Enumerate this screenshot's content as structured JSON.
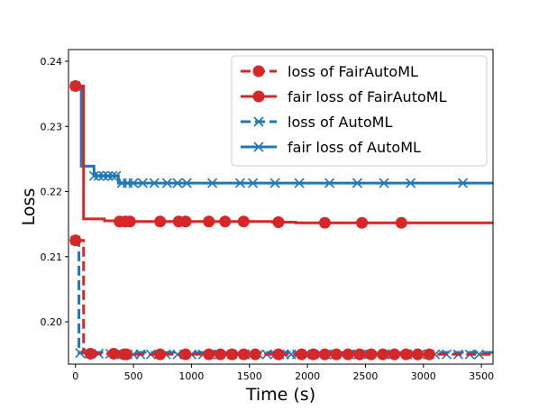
{
  "chart_data": {
    "type": "line",
    "title": "",
    "xlabel": "Time (s)",
    "ylabel": "Loss",
    "xlim": [
      -60,
      3600
    ],
    "ylim": [
      0.1935,
      0.2418
    ],
    "xticks": [
      0,
      500,
      1000,
      1500,
      2000,
      2500,
      3000,
      3500
    ],
    "yticks": [
      0.2,
      0.21,
      0.22,
      0.23,
      0.24
    ],
    "xtick_labels": [
      "0",
      "500",
      "1000",
      "1500",
      "2000",
      "2500",
      "3000",
      "3500"
    ],
    "ytick_labels": [
      "0.20",
      "0.21",
      "0.22",
      "0.23",
      "0.24"
    ],
    "grid": false,
    "legend_position": "top-right",
    "series": [
      {
        "name": "loss of FairAutoML",
        "color": "#d62728",
        "line_style": "dashed",
        "marker": "circle",
        "markers_filled": true,
        "x": [
          0,
          70,
          130,
          330,
          420,
          3600
        ],
        "y": [
          0.2125,
          0.1952,
          0.1951,
          0.1951,
          0.195,
          0.195
        ],
        "marker_x": [
          0,
          130,
          330,
          420,
          440,
          730,
          950,
          1150,
          1250,
          1350,
          1450,
          1550,
          1750,
          1950,
          2050,
          2150,
          2250,
          2350,
          2450,
          2550,
          2650,
          2750,
          2850,
          2950,
          3050
        ],
        "marker_y": [
          0.2125,
          0.1951,
          0.1951,
          0.195,
          0.195,
          0.195,
          0.195,
          0.195,
          0.195,
          0.195,
          0.195,
          0.195,
          0.195,
          0.195,
          0.195,
          0.195,
          0.195,
          0.195,
          0.195,
          0.195,
          0.195,
          0.195,
          0.195,
          0.195,
          0.195
        ]
      },
      {
        "name": "fair loss of FairAutoML",
        "color": "#d62728",
        "line_style": "solid",
        "marker": "circle",
        "markers_filled": true,
        "x": [
          0,
          30,
          70,
          250,
          380,
          1000,
          1700,
          1900,
          2150,
          2500,
          3600
        ],
        "y": [
          0.2362,
          0.2362,
          0.2158,
          0.2155,
          0.2154,
          0.2154,
          0.2153,
          0.2152,
          0.2152,
          0.2152,
          0.2152
        ],
        "marker_x": [
          0,
          380,
          430,
          470,
          730,
          890,
          950,
          1150,
          1290,
          1450,
          1750,
          2150,
          2470,
          2810
        ],
        "marker_y": [
          0.2362,
          0.2154,
          0.2154,
          0.2154,
          0.2154,
          0.2154,
          0.2154,
          0.2154,
          0.2154,
          0.2154,
          0.2153,
          0.2152,
          0.2152,
          0.2152
        ]
      },
      {
        "name": "loss of AutoML",
        "color": "#1f77b4",
        "line_style": "dashed",
        "marker": "x",
        "markers_filled": false,
        "x": [
          0,
          10,
          30,
          3600
        ],
        "y": [
          0.2125,
          0.2125,
          0.1953,
          0.195
        ],
        "marker_x": [
          0,
          40,
          120,
          200,
          300,
          350,
          400,
          450,
          500,
          560,
          650,
          720,
          780,
          880,
          940,
          1000,
          1100,
          1160,
          1200,
          1240,
          1300,
          1350,
          1400,
          1460,
          1520,
          1580,
          1650,
          1720,
          1760,
          1800,
          1860,
          1910,
          1980,
          2050,
          2120,
          2160,
          2240,
          2290,
          2360,
          2440,
          2480,
          2530,
          2600,
          2670,
          2730,
          2800,
          2860,
          2920,
          2970,
          3050,
          3100,
          3200,
          3300,
          3400,
          3480
        ],
        "marker_y": [
          0.2125,
          0.1952,
          0.1951,
          0.1951,
          0.1951,
          0.195,
          0.195,
          0.195,
          0.195,
          0.195,
          0.195,
          0.195,
          0.195,
          0.195,
          0.195,
          0.195,
          0.195,
          0.195,
          0.195,
          0.195,
          0.195,
          0.195,
          0.195,
          0.195,
          0.195,
          0.195,
          0.195,
          0.195,
          0.195,
          0.195,
          0.195,
          0.195,
          0.195,
          0.195,
          0.195,
          0.195,
          0.195,
          0.195,
          0.195,
          0.195,
          0.195,
          0.195,
          0.195,
          0.195,
          0.195,
          0.195,
          0.195,
          0.195,
          0.195,
          0.195,
          0.195,
          0.195,
          0.195,
          0.195,
          0.195
        ]
      },
      {
        "name": "fair loss of AutoML",
        "color": "#1f77b4",
        "line_style": "solid",
        "marker": "x",
        "markers_filled": false,
        "x": [
          0,
          50,
          160,
          370,
          3600
        ],
        "y": [
          0.2362,
          0.2239,
          0.2224,
          0.2213,
          0.2213
        ],
        "marker_x": [
          0,
          160,
          200,
          240,
          280,
          320,
          350,
          400,
          450,
          500,
          580,
          680,
          790,
          880,
          960,
          1180,
          1420,
          1530,
          1720,
          1930,
          2190,
          2430,
          2660,
          2890,
          3340
        ],
        "marker_y": [
          0.2362,
          0.2224,
          0.2224,
          0.2224,
          0.2224,
          0.2224,
          0.2224,
          0.2213,
          0.2213,
          0.2213,
          0.2213,
          0.2213,
          0.2213,
          0.2213,
          0.2213,
          0.2213,
          0.2213,
          0.2213,
          0.2213,
          0.2213,
          0.2213,
          0.2213,
          0.2213,
          0.2213,
          0.2213
        ]
      }
    ]
  }
}
